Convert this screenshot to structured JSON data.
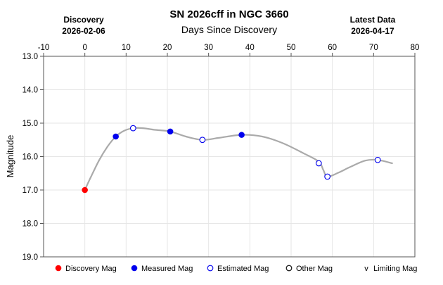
{
  "chart_data": {
    "type": "scatter",
    "title": "SN 2026cff in NGC 3660",
    "xlabel": "Days Since Discovery",
    "ylabel": "Magnitude",
    "xlim": [
      -10,
      80
    ],
    "ylim": [
      13.0,
      19.0
    ],
    "y_inverted": true,
    "x_axis_position": "top",
    "grid": true,
    "discovery": {
      "label": "Discovery",
      "date": "2026-02-06"
    },
    "latest": {
      "label": "Latest Data",
      "date": "2026-04-17"
    },
    "x_ticks": [
      "-10",
      "0",
      "10",
      "20",
      "30",
      "40",
      "50",
      "60",
      "70",
      "80"
    ],
    "x_tick_values": [
      -10,
      0,
      10,
      20,
      30,
      40,
      50,
      60,
      70,
      80
    ],
    "y_ticks": [
      "13.0",
      "14.0",
      "15.0",
      "16.0",
      "17.0",
      "18.0",
      "19.0"
    ],
    "y_tick_values": [
      13,
      14,
      15,
      16,
      17,
      18,
      19
    ],
    "series": [
      {
        "name": "Discovery Mag",
        "marker": "filled",
        "color": "#ff0000",
        "x": [
          0
        ],
        "y": [
          17.0
        ]
      },
      {
        "name": "Measured Mag",
        "marker": "filled",
        "color": "#0000ee",
        "x": [
          7.5,
          20.7,
          38.0
        ],
        "y": [
          15.4,
          15.25,
          15.35
        ]
      },
      {
        "name": "Estimated Mag",
        "marker": "open",
        "color": "#0000ee",
        "x": [
          11.7,
          28.5,
          56.7,
          58.8,
          71.0
        ],
        "y": [
          15.15,
          15.5,
          16.2,
          16.6,
          16.1
        ]
      }
    ],
    "trend_line": {
      "color": "#aaaaaa",
      "x": [
        0,
        1.5,
        3.5,
        5.5,
        7.5,
        9.5,
        11.7,
        14,
        17,
        20.7,
        24.5,
        28.5,
        32.5,
        38,
        43,
        48,
        53,
        56.7,
        57.8,
        58.8,
        61.5,
        64.5,
        68,
        71,
        74.5
      ],
      "y": [
        17.0,
        16.6,
        16.1,
        15.7,
        15.4,
        15.23,
        15.15,
        15.15,
        15.2,
        15.25,
        15.4,
        15.5,
        15.44,
        15.35,
        15.4,
        15.6,
        15.9,
        16.15,
        16.4,
        16.6,
        16.48,
        16.3,
        16.12,
        16.1,
        16.2
      ]
    },
    "legend": {
      "placement": "bottom",
      "items": [
        {
          "label": "Discovery Mag",
          "symbol": "filled",
          "color": "#ff0000"
        },
        {
          "label": "Measured Mag",
          "symbol": "filled",
          "color": "#0000ee"
        },
        {
          "label": "Estimated Mag",
          "symbol": "open",
          "color": "#0000ee"
        },
        {
          "label": "Other Mag",
          "symbol": "open",
          "color": "#000000"
        },
        {
          "label": "Limiting Mag",
          "symbol": "v",
          "color": "#000000"
        }
      ]
    }
  }
}
